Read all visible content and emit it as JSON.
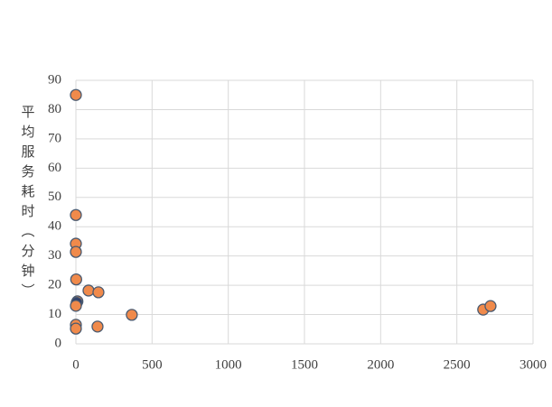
{
  "chart_data": {
    "type": "scatter",
    "y_label": "平均服务耗时（分钟）",
    "x": [
      0,
      0,
      0,
      0,
      2,
      10,
      5,
      0,
      0,
      0,
      83,
      148,
      142,
      367,
      2673,
      2721
    ],
    "values": [
      85,
      44,
      34.2,
      31.4,
      22,
      14.5,
      14,
      13,
      6.5,
      5.2,
      18.2,
      17.6,
      5.9,
      9.9,
      11.7,
      12.9
    ],
    "colors": [
      "#f08a4b",
      "#f08a4b",
      "#f08a4b",
      "#f08a4b",
      "#f08a4b",
      "#f08a4b",
      "#2e3d6b",
      "#f08a4b",
      "#f08a4b",
      "#f08a4b",
      "#f08a4b",
      "#f08a4b",
      "#f08a4b",
      "#f08a4b",
      "#f08a4b",
      "#f08a4b"
    ],
    "edge_color": "#4a5a70",
    "xlim": [
      0,
      3000
    ],
    "xticks": [
      0,
      500,
      1000,
      1500,
      2000,
      2500,
      3000
    ],
    "ylim": [
      0,
      90
    ],
    "yticks": [
      0,
      10,
      20,
      30,
      40,
      50,
      60,
      70,
      80,
      90
    ],
    "grid": true
  }
}
